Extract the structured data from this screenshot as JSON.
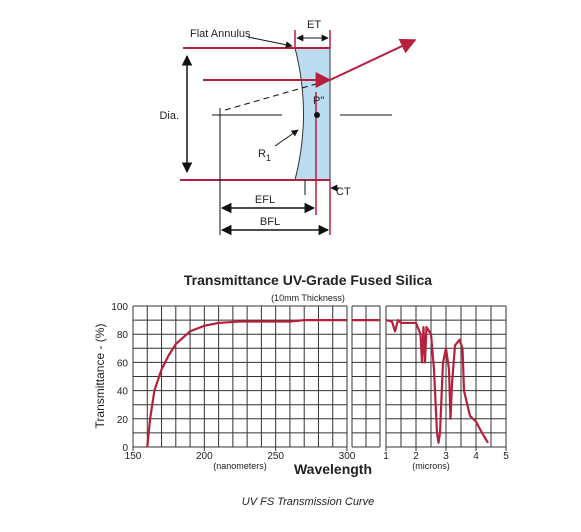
{
  "diagram": {
    "labels": {
      "flat_annulus": "Flat Annulus",
      "et": "ET",
      "dia": "Dia.",
      "p": "P\"",
      "r": "R",
      "r_sub": "1",
      "ct": "CT",
      "efl": "EFL",
      "bfl": "BFL"
    }
  },
  "chart_data": {
    "type": "line",
    "title": "Transmittance UV-Grade Fused Silica",
    "subtitle": "(10mm Thickness)",
    "ylabel": "Transmittance - (%)",
    "xlabel": "Wavelength",
    "caption": "UV FS Transmission Curve",
    "color": "#b5203c",
    "ylim": [
      0,
      100
    ],
    "yticks": [
      0,
      20,
      40,
      60,
      80,
      100
    ],
    "panels": [
      {
        "xlim": [
          150,
          300
        ],
        "xticks": [
          150,
          200,
          250,
          300
        ],
        "unit_label": "(nanometers)",
        "x": [
          160,
          162,
          165,
          170,
          175,
          180,
          190,
          200,
          210,
          225,
          250,
          260,
          270,
          300
        ],
        "values": [
          0,
          20,
          40,
          55,
          65,
          73,
          82,
          86,
          88,
          89,
          89,
          89,
          90,
          90
        ]
      },
      {
        "xlim": [
          300,
          1000
        ],
        "xticks": [],
        "x": [
          300,
          1000
        ],
        "values": [
          90,
          90
        ]
      },
      {
        "xlim": [
          1,
          5
        ],
        "xticks": [
          1,
          2,
          3,
          4,
          5
        ],
        "unit_label": "(microns)",
        "x": [
          1.0,
          1.2,
          1.3,
          1.4,
          1.5,
          2.0,
          2.15,
          2.2,
          2.25,
          2.3,
          2.35,
          2.5,
          2.6,
          2.7,
          2.75,
          2.8,
          2.9,
          3.0,
          3.1,
          3.15,
          3.2,
          3.3,
          3.45,
          3.55,
          3.6,
          3.8,
          4.0,
          4.2,
          4.4
        ],
        "values": [
          90,
          89,
          82,
          90,
          88,
          88,
          80,
          60,
          85,
          60,
          85,
          80,
          55,
          10,
          3,
          10,
          60,
          70,
          55,
          20,
          45,
          72,
          76,
          70,
          40,
          22,
          18,
          10,
          3
        ]
      }
    ]
  }
}
